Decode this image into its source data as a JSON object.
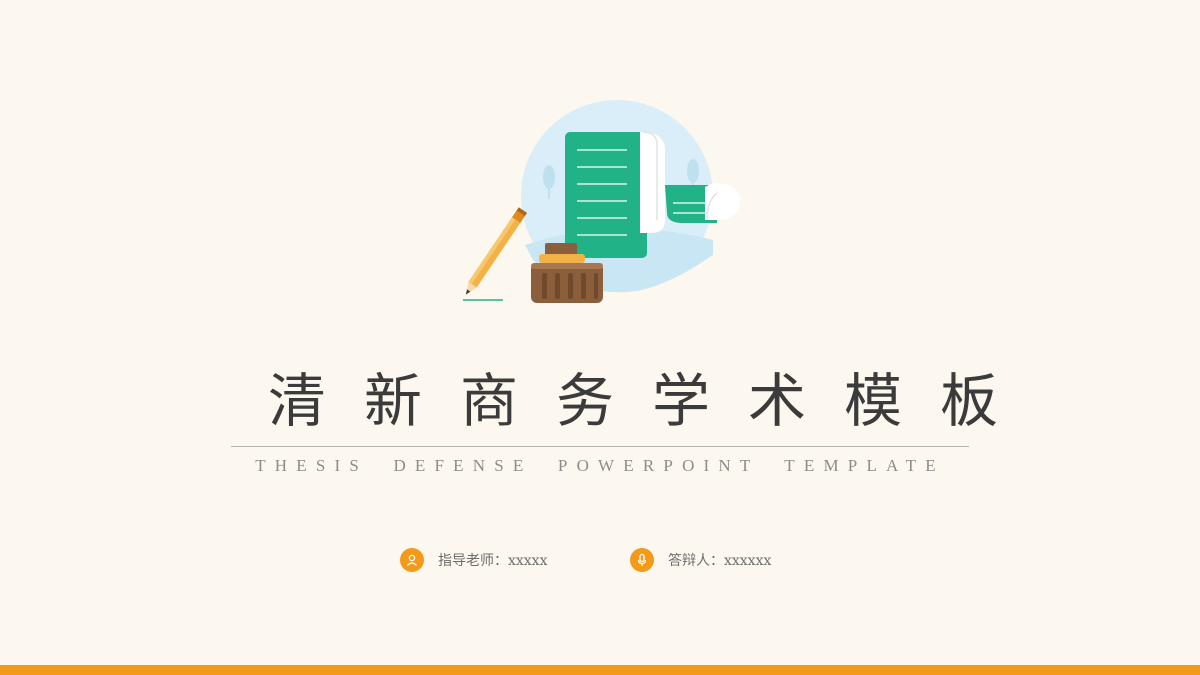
{
  "title": "清新商务学术模板",
  "subtitle": "THESIS DEFENSE POWERPOINT TEMPLATE",
  "info": {
    "teacher_label": "指导老师：xxxxx",
    "teacher_icon": "person-icon",
    "defender_label": "答辩人：xxxxxx",
    "defender_icon": "microphone-icon"
  },
  "colors": {
    "background": "#fdf8ef",
    "accent": "#f39a1b",
    "scroll_green": "#21b287",
    "circle_blue": "#d9eef8"
  }
}
